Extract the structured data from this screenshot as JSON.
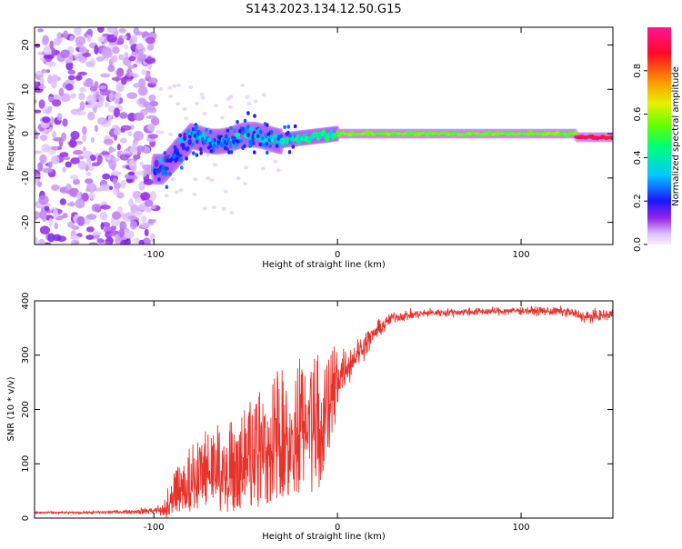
{
  "title": "S143.2023.134.12.50.G15",
  "chart_data": [
    {
      "type": "heatmap",
      "xlabel": "Height of straight line (km)",
      "ylabel": "Frequency (Hz)",
      "xlim": [
        -165,
        150
      ],
      "ylim": [
        -25,
        24
      ],
      "x_ticks": [
        -100,
        0,
        100
      ],
      "y_ticks": [
        -20,
        -10,
        0,
        10,
        20
      ],
      "colorbar": {
        "label": "Normalized spectral amplitude",
        "range": [
          0,
          1
        ],
        "ticks": [
          0.0,
          0.2,
          0.4,
          0.6,
          0.8
        ],
        "colormap": "hsv-rainbow: white/lavender at 0, purple, blue, cyan, green, yellow, orange, red, magenta at 1"
      },
      "regions": [
        {
          "x_range": [
            -165,
            -100
          ],
          "freq_range": [
            -25,
            24
          ],
          "amplitude": 0.05,
          "description": "broadband low-amplitude noise"
        },
        {
          "x_range": [
            -100,
            -30
          ],
          "freq_range": [
            -6,
            2
          ],
          "amplitude": 0.3,
          "description": "emerging tone with scatter"
        },
        {
          "x_range": [
            -30,
            0
          ],
          "freq_range": [
            -2,
            0
          ],
          "amplitude": 0.5,
          "description": "tone converging to near 0 Hz"
        },
        {
          "x_range": [
            0,
            130
          ],
          "freq_range": [
            -0.5,
            0.5
          ],
          "amplitude": 0.65,
          "description": "stable tone near 0 Hz"
        },
        {
          "x_range": [
            130,
            150
          ],
          "freq_range": [
            -1.2,
            -0.5
          ],
          "amplitude": 0.95,
          "description": "peak amplitude"
        }
      ]
    },
    {
      "type": "line",
      "xlabel": "Height of straight line (km)",
      "ylabel": "SNR (10 * v/v)",
      "xlim": [
        -165,
        150
      ],
      "ylim": [
        0,
        400
      ],
      "x_ticks": [
        -100,
        0,
        100
      ],
      "y_ticks": [
        0,
        100,
        200,
        300,
        400
      ],
      "color": "#e8322c",
      "series": [
        {
          "x": [
            -165,
            -140,
            -110,
            -95,
            -90,
            -80,
            -70,
            -60,
            -50,
            -40,
            -30,
            -20,
            -10,
            0,
            10,
            20,
            30,
            50,
            75,
            100,
            125,
            135,
            150
          ],
          "y": [
            10,
            10,
            12,
            15,
            40,
            70,
            95,
            85,
            110,
            130,
            160,
            170,
            175,
            260,
            300,
            340,
            370,
            378,
            380,
            382,
            380,
            370,
            375
          ],
          "spread": [
            3,
            3,
            5,
            15,
            30,
            50,
            60,
            70,
            80,
            90,
            100,
            110,
            100,
            60,
            40,
            25,
            15,
            10,
            10,
            10,
            12,
            15,
            15
          ]
        }
      ]
    }
  ]
}
